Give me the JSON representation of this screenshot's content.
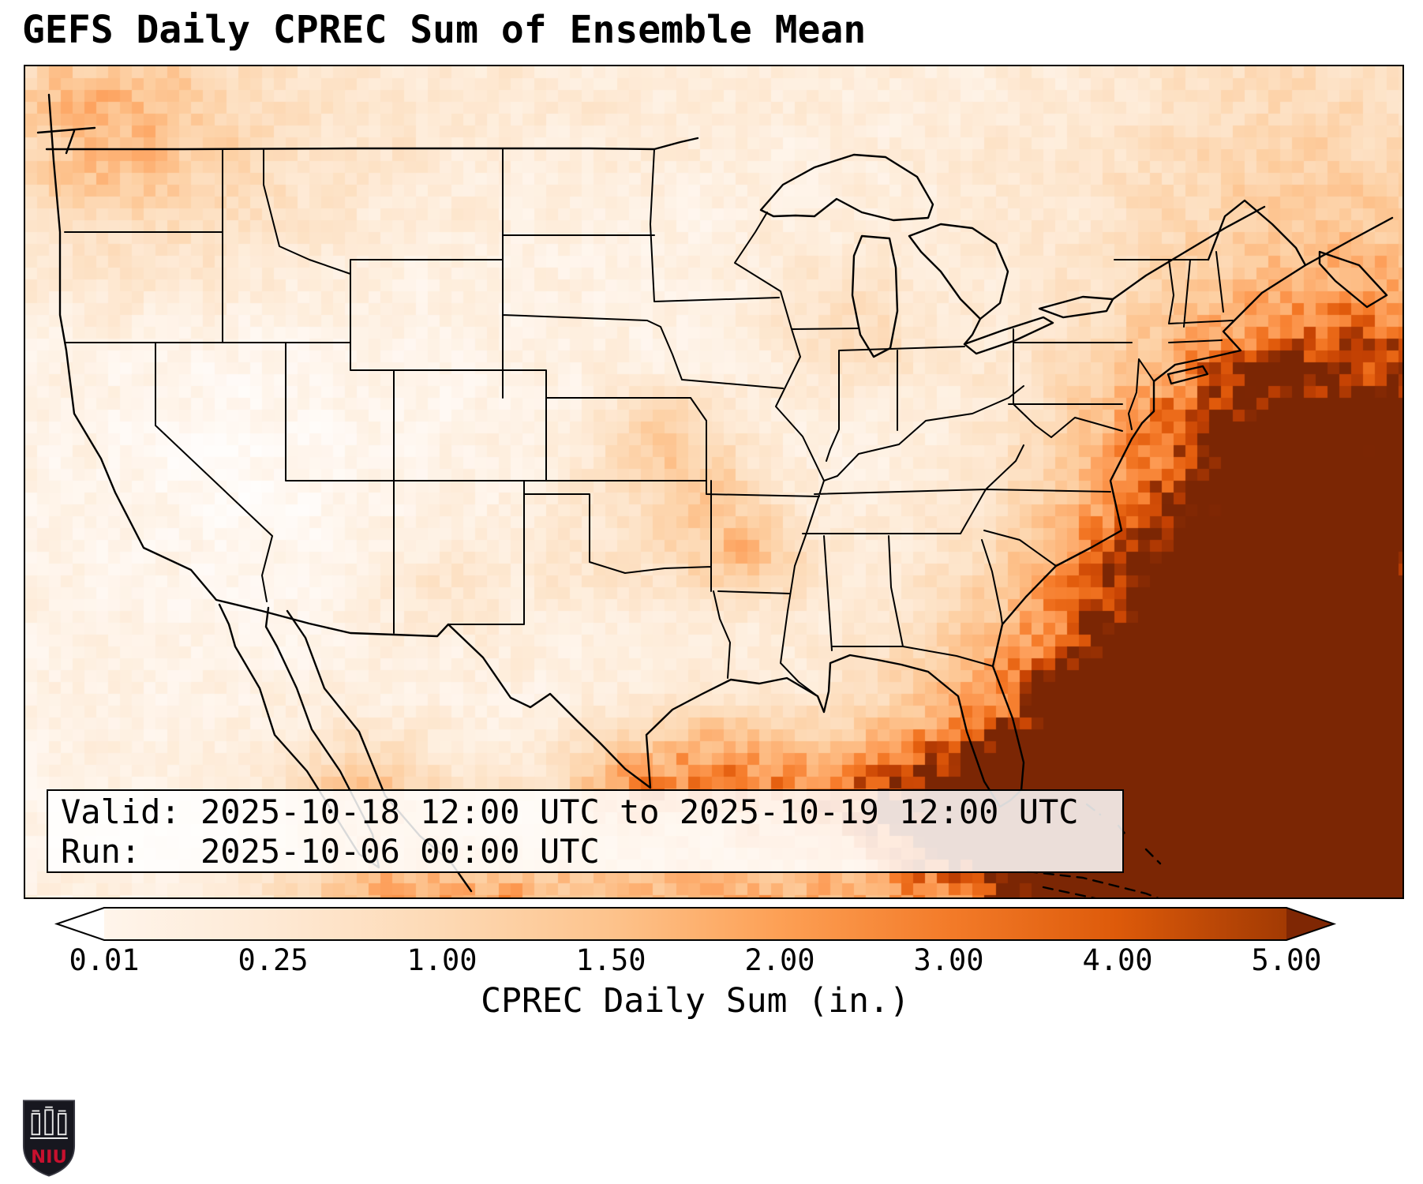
{
  "title": "GEFS Daily CPREC Sum of Ensemble Mean",
  "info_box": {
    "valid_line": "Valid: 2025-10-18 12:00 UTC to 2025-10-19 12:00 UTC",
    "run_line": "Run:   2025-10-06 00:00 UTC"
  },
  "colorbar": {
    "label": "CPREC Daily Sum (in.)",
    "ticks": [
      "0.01",
      "0.25",
      "1.00",
      "1.50",
      "2.00",
      "3.00",
      "4.00",
      "5.00"
    ],
    "segment_colors": [
      "#fff5eb",
      "#fee9d4",
      "#fdd9b4",
      "#fdc38c",
      "#fda055",
      "#f37b29",
      "#dd5a0a",
      "#a23a03"
    ],
    "under_color": "#ffffff",
    "over_color": "#7f2704"
  },
  "logo": {
    "text": "NIU",
    "accent_color": "#c8102e"
  },
  "chart_data": {
    "type": "heatmap",
    "title": "GEFS Daily CPREC Sum of Ensemble Mean",
    "variable": "CPREC Daily Sum",
    "units": "in.",
    "valid_period": "2025-10-18 12:00 UTC to 2025-10-19 12:00 UTC",
    "model_run": "2025-10-06 00:00 UTC",
    "colorbar_boundaries": [
      0.01,
      0.25,
      1.0,
      1.5,
      2.0,
      3.0,
      4.0,
      5.0
    ],
    "colormap": "Oranges",
    "colorbar_extend": "both",
    "region": "Continental United States with adjacent Atlantic, Gulf of Mexico, Caribbean and Mexico",
    "pattern_summary": [
      "Heaviest amounts (4 to 5+ in.) offshore in the western Atlantic, near the Bahamas/Caribbean and off the southeast U.S. coast",
      "2 to 4 in. over Florida and along the Gulf Stream band paralleling the East Coast",
      "0.5 to 1.5 in. along the central Gulf Coast, the Texas coast and western Mexico",
      "Around 0.25 to 0.75 in. in the Pacific Northwest corner and in a Missouri/Ozarks streak",
      "Generally under 0.25 in. across the interior West, Plains and Midwest"
    ]
  }
}
